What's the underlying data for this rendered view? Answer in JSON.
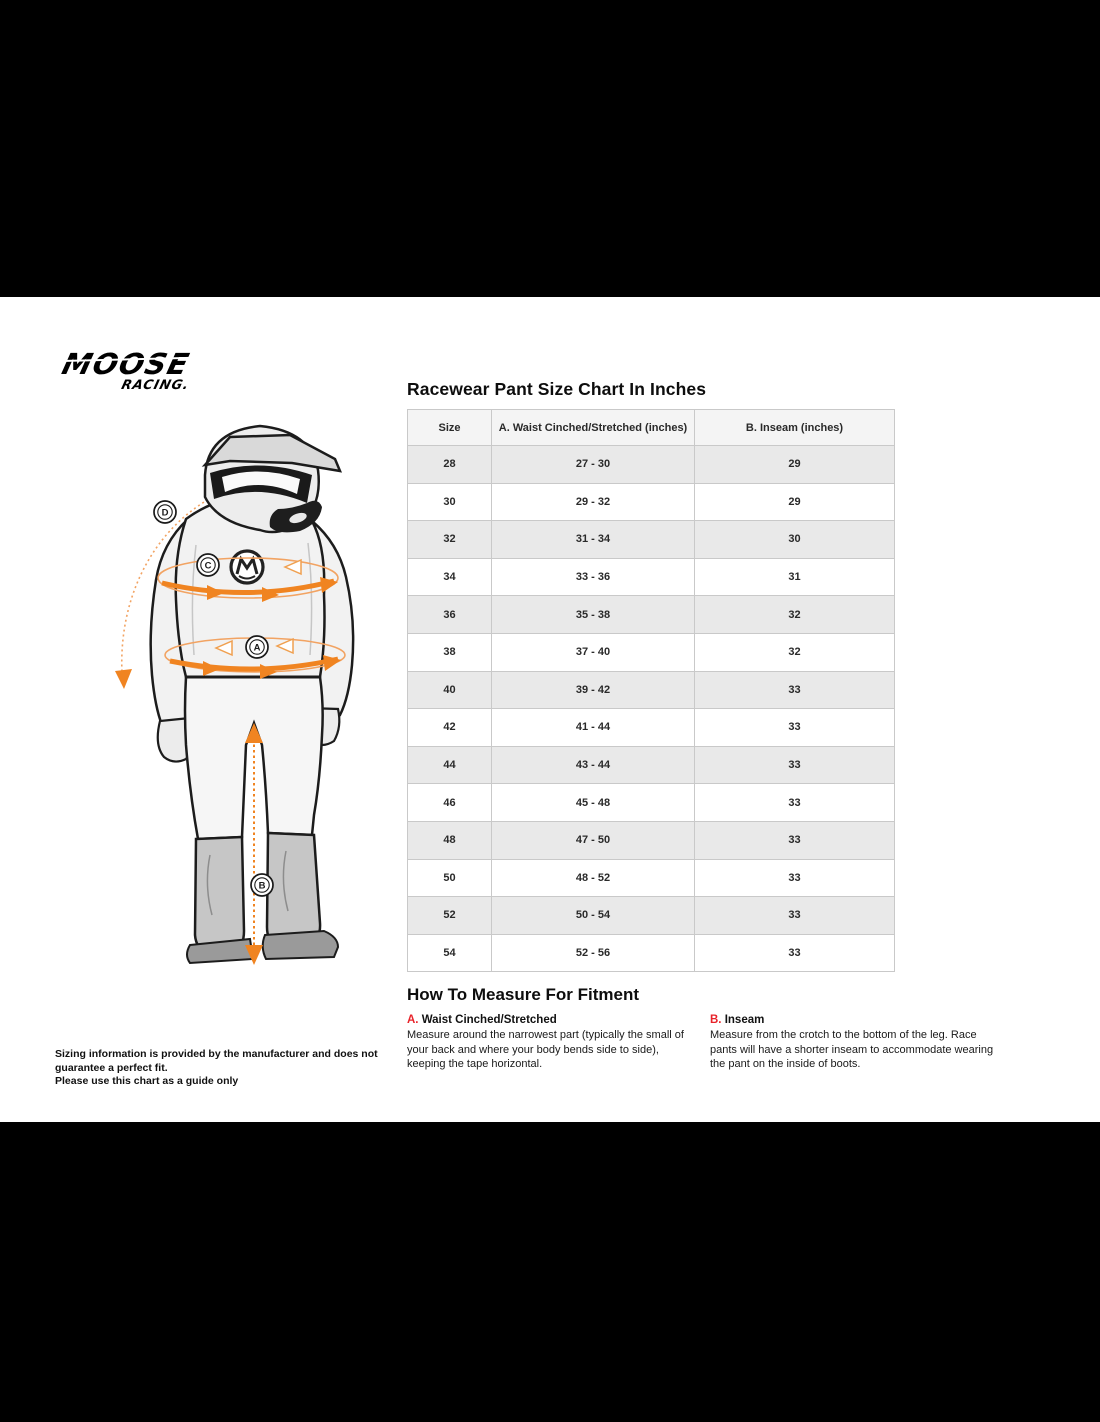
{
  "brand": {
    "name_top": "MOOSE",
    "name_bottom": "RACING."
  },
  "chart_data": {
    "type": "table",
    "title": "Racewear Pant Size Chart In Inches",
    "columns": [
      "Size",
      "A. Waist Cinched/Stretched (inches)",
      "B. Inseam (inches)"
    ],
    "rows": [
      [
        "28",
        "27 - 30",
        "29"
      ],
      [
        "30",
        "29 - 32",
        "29"
      ],
      [
        "32",
        "31 - 34",
        "30"
      ],
      [
        "34",
        "33 - 36",
        "31"
      ],
      [
        "36",
        "35 - 38",
        "32"
      ],
      [
        "38",
        "37 - 40",
        "32"
      ],
      [
        "40",
        "39 - 42",
        "33"
      ],
      [
        "42",
        "41 - 44",
        "33"
      ],
      [
        "44",
        "43 - 44",
        "33"
      ],
      [
        "46",
        "45 - 48",
        "33"
      ],
      [
        "48",
        "47 - 50",
        "33"
      ],
      [
        "50",
        "48 - 52",
        "33"
      ],
      [
        "52",
        "50 - 54",
        "33"
      ],
      [
        "54",
        "52 - 56",
        "33"
      ]
    ]
  },
  "how_to_measure": {
    "title": "How To Measure For Fitment",
    "sections": [
      {
        "letter": "A.",
        "name": "Waist Cinched/Stretched",
        "text": "Measure around the narrowest part (typically the small of your back and where your body bends side to side), keeping the tape horizontal."
      },
      {
        "letter": "B.",
        "name": "Inseam",
        "text": "Measure from the crotch to the bottom of the leg. Race pants will have a shorter inseam to accommodate wearing the pant on the inside of boots."
      }
    ]
  },
  "disclaimer": {
    "line1": "Sizing information is provided by the manufacturer and does not guarantee a perfect fit.",
    "line2": "Please use this chart as a guide only"
  },
  "figure": {
    "labels": [
      "D",
      "C",
      "A",
      "B"
    ]
  },
  "colors": {
    "accent_orange": "#f08421",
    "accent_orange_light": "#f2a362",
    "accent_red": "#e8232a",
    "row_shade": "#e9e9e9"
  }
}
